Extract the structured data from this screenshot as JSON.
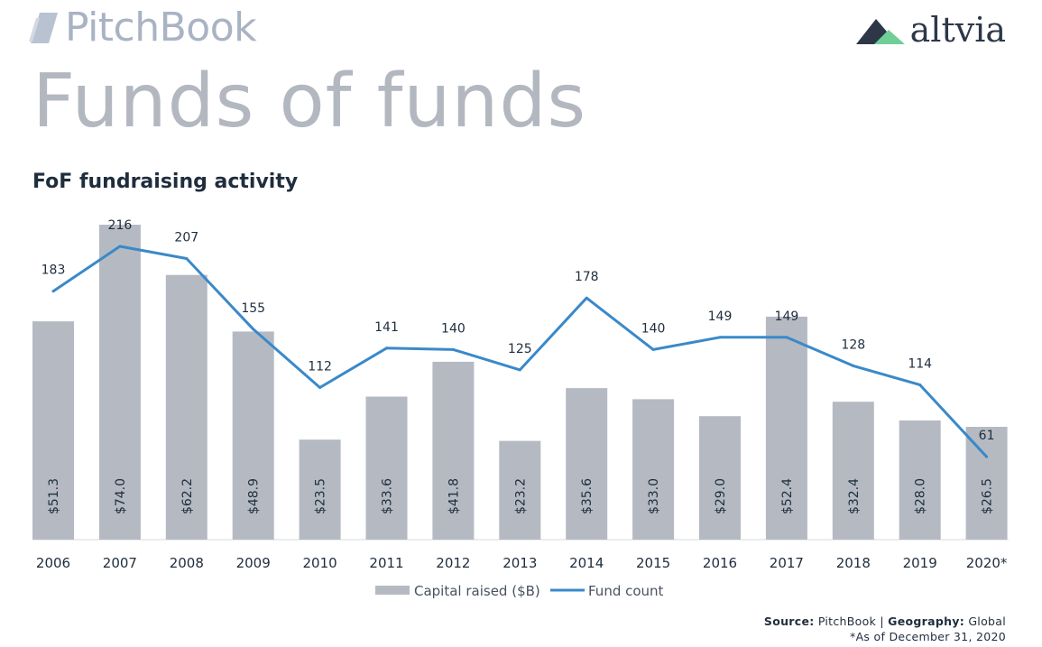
{
  "header": {
    "pitchbook_label": "PitchBook",
    "altvia_label": "altvia",
    "page_title": "Funds of funds"
  },
  "chart_title": "FoF fundraising activity",
  "legend": {
    "bar_label": "Capital raised ($B)",
    "line_label": "Fund count"
  },
  "source": {
    "source_label": "Source:",
    "source_value": "PitchBook",
    "separator": "|",
    "geo_label": "Geography:",
    "geo_value": "Global",
    "note": "*As of December 31, 2020"
  },
  "colors": {
    "bar": "#b5bac2",
    "line": "#3a89c9",
    "bar_label": "#1f2d3d",
    "line_label": "#1f2d3d"
  },
  "chart_data": {
    "type": "bar",
    "categories": [
      "2006",
      "2007",
      "2008",
      "2009",
      "2010",
      "2011",
      "2012",
      "2013",
      "2014",
      "2015",
      "2016",
      "2017",
      "2018",
      "2019",
      "2020*"
    ],
    "series": [
      {
        "name": "Capital raised ($B)",
        "type": "bar",
        "values": [
          51.3,
          74.0,
          62.2,
          48.9,
          23.5,
          33.6,
          41.8,
          23.2,
          35.6,
          33.0,
          29.0,
          52.4,
          32.4,
          28.0,
          26.5
        ],
        "labels": [
          "$51.3",
          "$74.0",
          "$62.2",
          "$48.9",
          "$23.5",
          "$33.6",
          "$41.8",
          "$23.2",
          "$35.6",
          "$33.0",
          "$29.0",
          "$52.4",
          "$32.4",
          "$28.0",
          "$26.5"
        ]
      },
      {
        "name": "Fund count",
        "type": "line",
        "values": [
          183,
          216,
          207,
          155,
          112,
          141,
          140,
          125,
          178,
          140,
          149,
          149,
          128,
          114,
          61
        ]
      }
    ],
    "title": "FoF fundraising activity",
    "xlabel": "",
    "ylabel": "",
    "ylim_bar": [
      0,
      74.0
    ],
    "ylim_line": [
      0,
      216
    ],
    "grid": false,
    "legend_position": "bottom-center"
  }
}
